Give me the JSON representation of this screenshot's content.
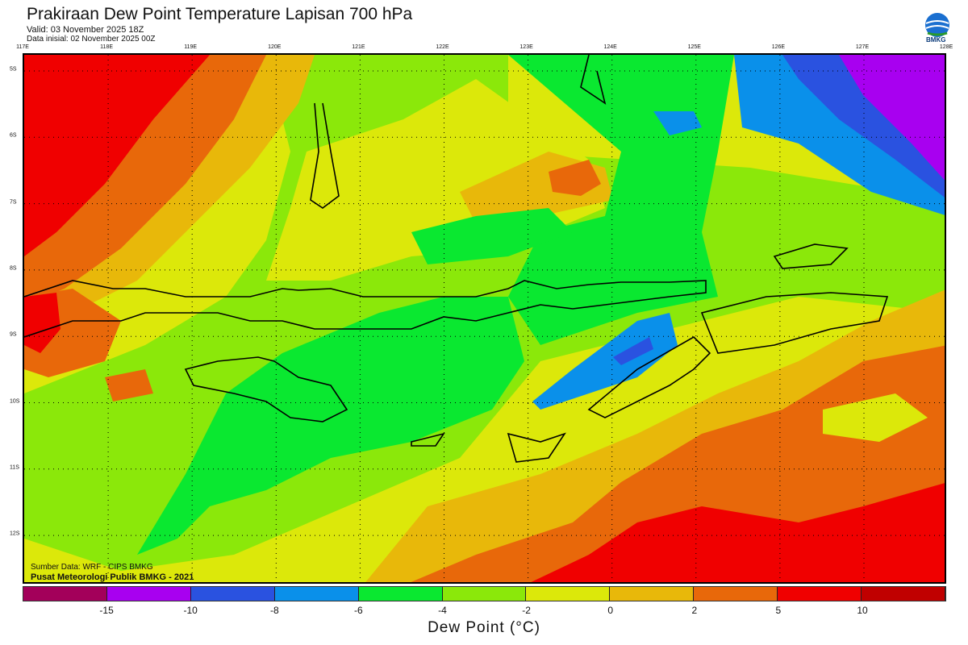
{
  "header": {
    "title": "Prakiraan Dew Point Temperature Lapisan 700 hPa",
    "valid": "Valid: 03 November 2025 18Z",
    "init": "Data inisial: 02 November 2025 00Z"
  },
  "logo": {
    "text": "BMKG"
  },
  "axes": {
    "lon_labels": [
      "117E",
      "118E",
      "119E",
      "120E",
      "121E",
      "122E",
      "123E",
      "124E",
      "125E",
      "126E",
      "127E",
      "128E"
    ],
    "lat_labels": [
      "5S",
      "6S",
      "7S",
      "8S",
      "9S",
      "10S",
      "11S",
      "12S"
    ]
  },
  "source": {
    "line1": "Sumber Data: WRF - CIPS BMKG",
    "line2": "Pusat Meteorologi Publik BMKG - 2021"
  },
  "colorbar": {
    "colors": [
      "#a3005a",
      "#a800f0",
      "#2a52e0",
      "#0a90ea",
      "#0ae830",
      "#8be80a",
      "#dce80a",
      "#e8b80a",
      "#e8680a",
      "#f00000",
      "#c00000"
    ],
    "ticks": [
      "-15",
      "-10",
      "-8",
      "-6",
      "-4",
      "-2",
      "0",
      "2",
      "5",
      "10"
    ],
    "label": "Dew Point (°C)"
  }
}
